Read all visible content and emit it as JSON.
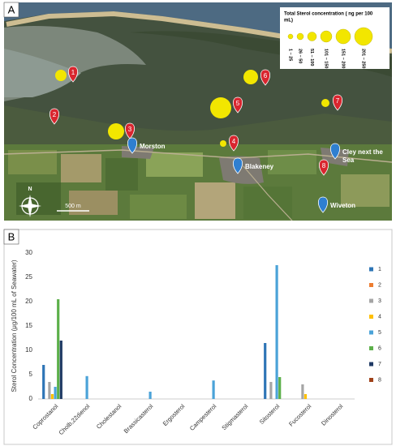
{
  "map": {
    "panel_label": "A",
    "legend": {
      "title_lines": [
        "Total Sterol concentration ( ng per 100",
        "mL)"
      ],
      "classes": [
        "1 – 25",
        "26 – 50",
        "51 – 100",
        "101 – 150",
        "151 – 200",
        "201 – 250"
      ]
    },
    "sites": [
      "1",
      "2",
      "3",
      "4",
      "5",
      "6",
      "7",
      "8"
    ],
    "towns": [
      [
        "Morston"
      ],
      [
        "Blakeney"
      ],
      [
        "Cley next the",
        "Sea"
      ],
      [
        "Wiveton"
      ]
    ],
    "scale": "500 m",
    "north": "N"
  },
  "chart_data": {
    "type": "bar",
    "panel_label": "B",
    "y_label": "Sterol Concentration (μg/100 mL of Seawater)",
    "categories": [
      "Coprostanol",
      "Cholb,22dienol",
      "Cholestanol",
      "Brassicasterol",
      "Ergosterol",
      "Campesterol",
      "Stigmasterol",
      "Sitosterol",
      "Fucosterol",
      "Dinosterol"
    ],
    "series": [
      {
        "name": "1",
        "color": "#2e75b6",
        "values": [
          7,
          0,
          0,
          0,
          0,
          0,
          0,
          11.5,
          0,
          0
        ]
      },
      {
        "name": "2",
        "color": "#ed7d31",
        "values": [
          0,
          0,
          0,
          0,
          0,
          0,
          0,
          0,
          0,
          0
        ]
      },
      {
        "name": "3",
        "color": "#a5a5a5",
        "values": [
          3.5,
          0,
          0,
          0,
          0,
          0,
          0,
          3.5,
          3,
          0
        ]
      },
      {
        "name": "4",
        "color": "#ffc000",
        "values": [
          1,
          0,
          0,
          0,
          0,
          0,
          0,
          0,
          1,
          0
        ]
      },
      {
        "name": "5",
        "color": "#4ba3d8",
        "values": [
          2.5,
          4.7,
          0,
          1.5,
          0,
          3.8,
          0,
          27.5,
          0,
          0
        ]
      },
      {
        "name": "6",
        "color": "#5cb04a",
        "values": [
          20.5,
          0,
          0,
          0,
          0,
          0,
          0,
          4.5,
          0,
          0
        ]
      },
      {
        "name": "7",
        "color": "#1f3a64",
        "values": [
          12,
          0,
          0,
          0,
          0,
          0,
          0,
          0,
          0,
          0
        ]
      },
      {
        "name": "8",
        "color": "#a0421a",
        "values": [
          0,
          0,
          0,
          0,
          0,
          0,
          0,
          0,
          0,
          0
        ]
      }
    ],
    "ylim": [
      0,
      30
    ],
    "yticks": [
      0,
      5,
      10,
      15,
      20,
      25,
      30
    ],
    "grid": false
  }
}
